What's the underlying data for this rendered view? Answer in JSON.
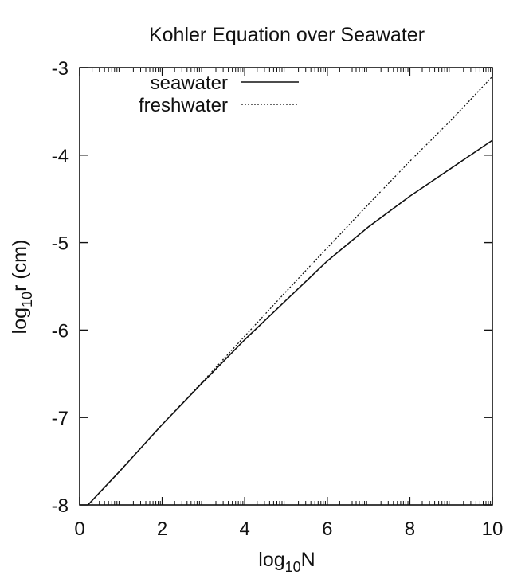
{
  "chart_data": {
    "type": "line",
    "title": "Kohler Equation over Seawater",
    "xlabel": {
      "base": "log",
      "sub": "10",
      "rest": "N"
    },
    "ylabel": {
      "base": "log",
      "sub": "10",
      "rest": "r (cm)"
    },
    "xlim": [
      0,
      10
    ],
    "ylim": [
      -8,
      -3
    ],
    "x_ticks": [
      "0",
      "2",
      "4",
      "6",
      "8",
      "10"
    ],
    "y_ticks": [
      "-8",
      "-7",
      "-6",
      "-5",
      "-4",
      "-3"
    ],
    "grid": false,
    "legend_position": "top-left",
    "series": [
      {
        "name": "seawater",
        "style": "solid",
        "color": "#111111",
        "x": [
          0.2,
          1,
          2,
          3,
          4,
          5,
          6,
          7,
          8,
          9,
          10
        ],
        "y": [
          -8.0,
          -7.6,
          -7.08,
          -6.59,
          -6.11,
          -5.66,
          -5.21,
          -4.82,
          -4.47,
          -4.15,
          -3.83
        ]
      },
      {
        "name": "freshwater",
        "style": "dotted",
        "color": "#111111",
        "x": [
          0.2,
          1,
          2,
          3,
          4,
          5,
          6,
          7,
          8,
          9,
          10
        ],
        "y": [
          -8.0,
          -7.6,
          -7.08,
          -6.58,
          -6.07,
          -5.56,
          -5.06,
          -4.56,
          -4.07,
          -3.6,
          -3.1
        ]
      }
    ]
  }
}
